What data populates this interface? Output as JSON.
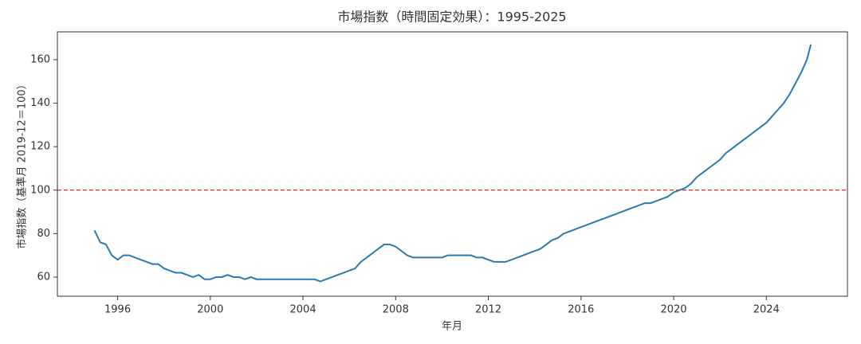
{
  "chart_data": {
    "type": "line",
    "title": "市場指数（時間固定効果）：1995-2025",
    "x_label": "年月",
    "y_label": "市場指数（基準月 2019-12＝100）",
    "x": [
      1995,
      1995.25,
      1995.5,
      1995.75,
      1996,
      1996.25,
      1996.5,
      1996.75,
      1997,
      1997.25,
      1997.5,
      1997.75,
      1998,
      1998.25,
      1998.5,
      1998.75,
      1999,
      1999.25,
      1999.5,
      1999.75,
      2000,
      2000.25,
      2000.5,
      2000.75,
      2001,
      2001.25,
      2001.5,
      2001.75,
      2002,
      2002.25,
      2002.5,
      2002.75,
      2003,
      2003.25,
      2003.5,
      2003.75,
      2004,
      2004.25,
      2004.5,
      2004.75,
      2005,
      2005.25,
      2005.5,
      2005.75,
      2006,
      2006.25,
      2006.5,
      2006.75,
      2007,
      2007.25,
      2007.5,
      2007.75,
      2008,
      2008.25,
      2008.5,
      2008.75,
      2009,
      2009.25,
      2009.5,
      2009.75,
      2010,
      2010.25,
      2010.5,
      2010.75,
      2011,
      2011.25,
      2011.5,
      2011.75,
      2012,
      2012.25,
      2012.5,
      2012.75,
      2013,
      2013.25,
      2013.5,
      2013.75,
      2014,
      2014.25,
      2014.5,
      2014.75,
      2015,
      2015.25,
      2015.5,
      2015.75,
      2016,
      2016.25,
      2016.5,
      2016.75,
      2017,
      2017.25,
      2017.5,
      2017.75,
      2018,
      2018.25,
      2018.5,
      2018.75,
      2019,
      2019.25,
      2019.5,
      2019.75,
      2020,
      2020.25,
      2020.5,
      2020.75,
      2021,
      2021.25,
      2021.5,
      2021.75,
      2022,
      2022.25,
      2022.5,
      2022.75,
      2023,
      2023.25,
      2023.5,
      2023.75,
      2024,
      2024.25,
      2024.5,
      2024.75,
      2025,
      2025.25,
      2025.5,
      2025.75,
      2025.92
    ],
    "series": [
      {
        "color": "#2a7ab0",
        "values": [
          81.5,
          76,
          75,
          70,
          68,
          70,
          70,
          69,
          68,
          67,
          66,
          66,
          64,
          63,
          62,
          62,
          61,
          60,
          61,
          59,
          59,
          60,
          60,
          61,
          60,
          60,
          59,
          60,
          59,
          59,
          59,
          59,
          59,
          59,
          59,
          59,
          59,
          59,
          59,
          58,
          59,
          60,
          61,
          62,
          63,
          64,
          67,
          69,
          71,
          73,
          75,
          75,
          74,
          72,
          70,
          69,
          69,
          69,
          69,
          69,
          69,
          70,
          70,
          70,
          70,
          70,
          69,
          69,
          68,
          67,
          67,
          67,
          68,
          69,
          70,
          71,
          72,
          73,
          75,
          77,
          78,
          80,
          81,
          82,
          83,
          84,
          85,
          86,
          87,
          88,
          89,
          90,
          91,
          92,
          93,
          94,
          94,
          95,
          96,
          97,
          99,
          100,
          101,
          103,
          106,
          108,
          110,
          112,
          114,
          117,
          119,
          121,
          123,
          125,
          127,
          129,
          131,
          134,
          137,
          140,
          144,
          149,
          154,
          160,
          167
        ]
      }
    ],
    "reference_line": {
      "value": 100,
      "color": "#d62728"
    },
    "xlim": [
      1993.4,
      2027.5
    ],
    "xticks": [
      1996,
      2000,
      2004,
      2008,
      2012,
      2016,
      2020,
      2024
    ],
    "ylim": [
      51.2,
      172.8
    ],
    "yticks": [
      60,
      80,
      100,
      120,
      140,
      160
    ]
  }
}
